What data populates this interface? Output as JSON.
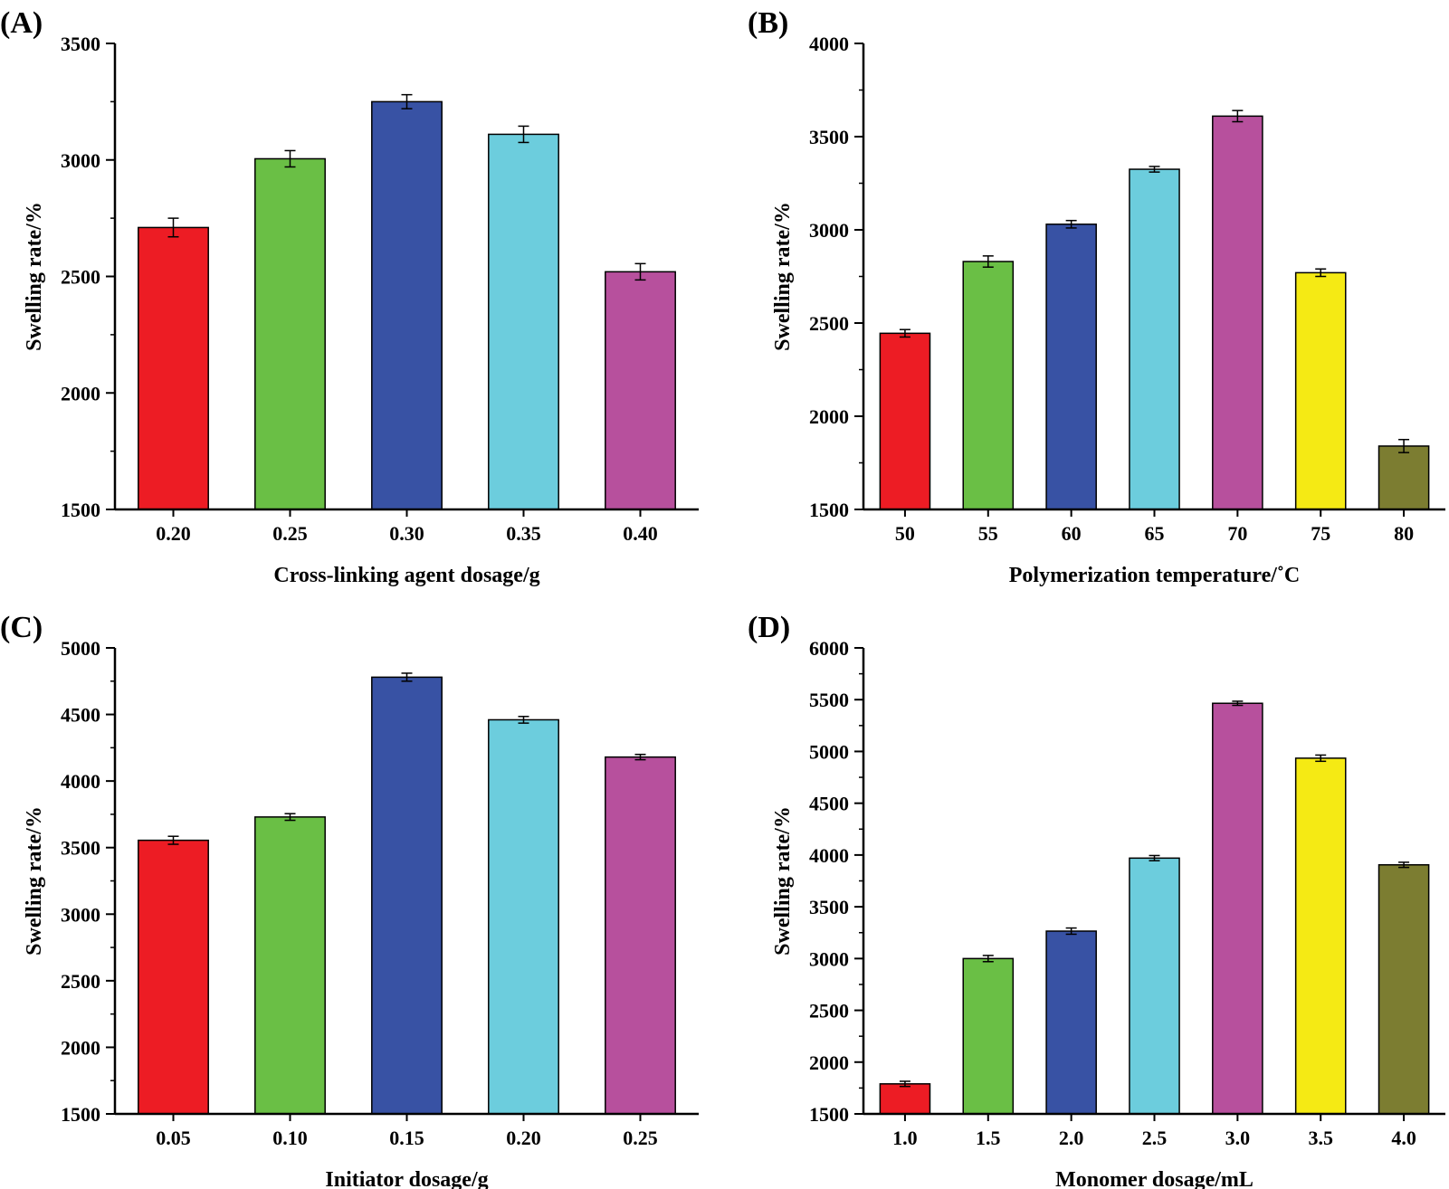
{
  "chart_data": [
    {
      "panel": "(A)",
      "type": "bar",
      "categories": [
        "0.20",
        "0.25",
        "0.30",
        "0.35",
        "0.40"
      ],
      "values": [
        2710,
        3005,
        3250,
        3110,
        2520
      ],
      "errors": [
        40,
        35,
        30,
        35,
        35
      ],
      "colors": [
        "#ed1c24",
        "#6abf45",
        "#3852a4",
        "#6ccddd",
        "#b7509d"
      ],
      "xlabel": "Cross-linking agent dosage/g",
      "ylabel": "Swelling rate/%",
      "ylim": [
        1500,
        3500
      ],
      "yticks": [
        "1500",
        "2000",
        "2500",
        "3000",
        "3500"
      ]
    },
    {
      "panel": "(B)",
      "type": "bar",
      "categories": [
        "50",
        "55",
        "60",
        "65",
        "70",
        "75",
        "80"
      ],
      "values": [
        2445,
        2830,
        3030,
        3325,
        3610,
        2770,
        1840
      ],
      "errors": [
        20,
        30,
        20,
        15,
        30,
        20,
        35
      ],
      "colors": [
        "#ed1c24",
        "#6abf45",
        "#3852a4",
        "#6ccddd",
        "#b7509d",
        "#f5ea14",
        "#7c7d31"
      ],
      "xlabel": "Polymerization temperature/˚C",
      "ylabel": "Swelling rate/%",
      "ylim": [
        1500,
        4000
      ],
      "yticks": [
        "1500",
        "2000",
        "2500",
        "3000",
        "3500",
        "4000"
      ]
    },
    {
      "panel": "(C)",
      "type": "bar",
      "categories": [
        "0.05",
        "0.10",
        "0.15",
        "0.20",
        "0.25"
      ],
      "values": [
        3555,
        3730,
        4780,
        4460,
        4180
      ],
      "errors": [
        30,
        25,
        30,
        25,
        20
      ],
      "colors": [
        "#ed1c24",
        "#6abf45",
        "#3852a4",
        "#6ccddd",
        "#b7509d"
      ],
      "xlabel": "Initiator dosage/g",
      "ylabel": "Swelling rate/%",
      "ylim": [
        1500,
        5000
      ],
      "yticks": [
        "1500",
        "2000",
        "2500",
        "3000",
        "3500",
        "4000",
        "4500",
        "5000"
      ]
    },
    {
      "panel": "(D)",
      "type": "bar",
      "categories": [
        "1.0",
        "1.5",
        "2.0",
        "2.5",
        "3.0",
        "3.5",
        "4.0"
      ],
      "values": [
        1790,
        3000,
        3265,
        3970,
        5465,
        4935,
        3905
      ],
      "errors": [
        25,
        30,
        30,
        25,
        20,
        30,
        25
      ],
      "colors": [
        "#ed1c24",
        "#6abf45",
        "#3852a4",
        "#6ccddd",
        "#b7509d",
        "#f5ea14",
        "#7c7d31"
      ],
      "xlabel": "Monomer dosage/mL",
      "ylabel": "Swelling rate/%",
      "ylim": [
        1500,
        6000
      ],
      "yticks": [
        "1500",
        "2000",
        "2500",
        "3000",
        "3500",
        "4000",
        "4500",
        "5000",
        "5500",
        "6000"
      ]
    }
  ]
}
